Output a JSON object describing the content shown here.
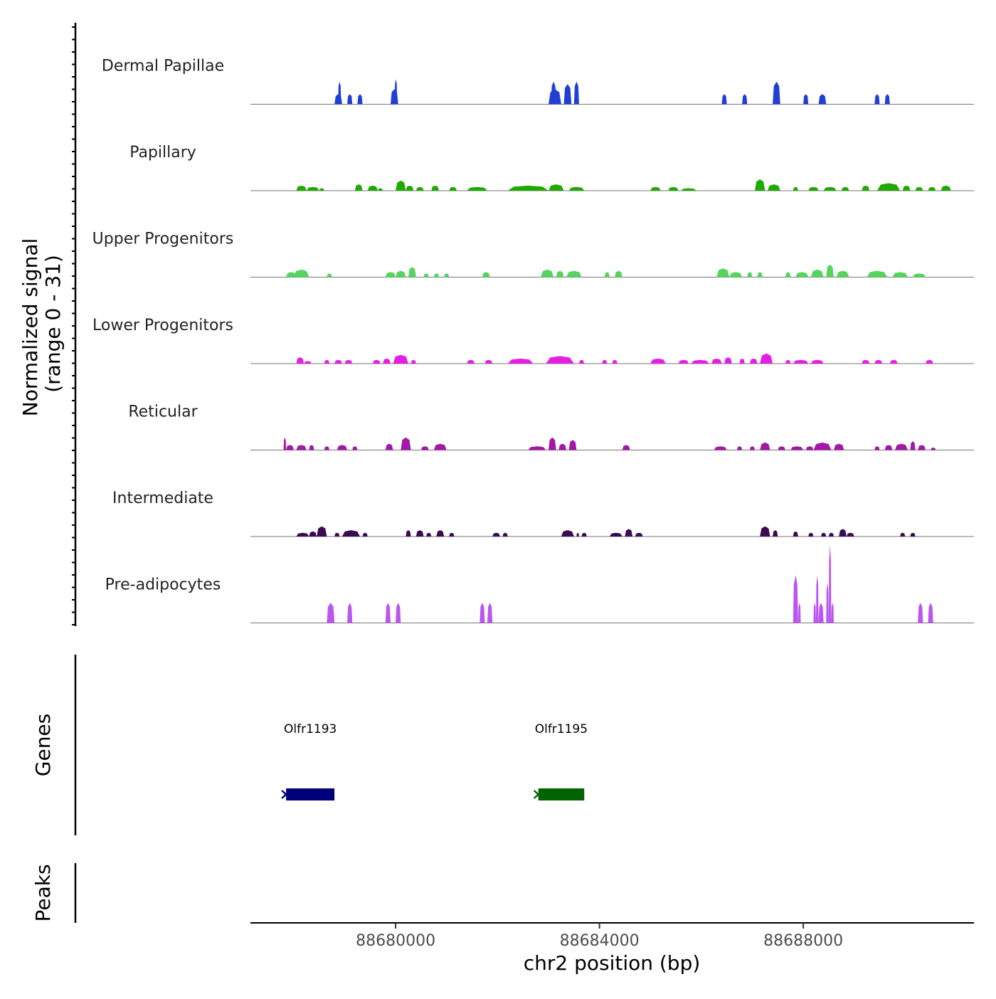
{
  "chart_data": {
    "type": "area",
    "title": "",
    "region": {
      "chrom": "chr2",
      "start": 88677150,
      "end": 88691350
    },
    "xlabel": "chr2 position (bp)",
    "x_ticks": [
      88680000,
      88684000,
      88688000
    ],
    "x_tick_labels": [
      "88680000",
      "88684000",
      "88688000"
    ],
    "ylabel_line1": "Normalized signal",
    "ylabel_line2": "(range 0 - 31)",
    "ylim": [
      0,
      31
    ],
    "genes_label": "Genes",
    "peaks_label": "Peaks",
    "series": [
      {
        "name": "Dermal Papillae",
        "color": "#1f3fd6",
        "segments": [
          [
            88678800,
            88678950,
            4
          ],
          [
            88678870,
            88678930,
            9
          ],
          [
            88679050,
            88679150,
            4
          ],
          [
            88679250,
            88679350,
            4
          ],
          [
            88679900,
            88680050,
            6
          ],
          [
            88679980,
            88680030,
            10
          ],
          [
            88683000,
            88683250,
            6
          ],
          [
            88683050,
            88683150,
            9
          ],
          [
            88683300,
            88683450,
            8
          ],
          [
            88683500,
            88683600,
            9
          ],
          [
            88686400,
            88686500,
            4
          ],
          [
            88686800,
            88686900,
            4
          ],
          [
            88687400,
            88687550,
            9
          ],
          [
            88688000,
            88688100,
            4
          ],
          [
            88688300,
            88688450,
            4
          ],
          [
            88689400,
            88689500,
            4
          ],
          [
            88689600,
            88689700,
            4
          ]
        ]
      },
      {
        "name": "Papillary",
        "color": "#1faa00",
        "segments": [
          [
            88678050,
            88678250,
            2
          ],
          [
            88678250,
            88678500,
            1.5
          ],
          [
            88678500,
            88678600,
            1
          ],
          [
            88679200,
            88679350,
            2.5
          ],
          [
            88679450,
            88679650,
            2
          ],
          [
            88679650,
            88679750,
            1
          ],
          [
            88680000,
            88680200,
            4
          ],
          [
            88680200,
            88680350,
            2
          ],
          [
            88680400,
            88680550,
            1.5
          ],
          [
            88680700,
            88680850,
            2
          ],
          [
            88681050,
            88681200,
            1.5
          ],
          [
            88681400,
            88681800,
            1.5
          ],
          [
            88682200,
            88683000,
            2
          ],
          [
            88683000,
            88683300,
            2.5
          ],
          [
            88683400,
            88683700,
            1.5
          ],
          [
            88685000,
            88685200,
            1.5
          ],
          [
            88685350,
            88685550,
            1.5
          ],
          [
            88685600,
            88685900,
            1
          ],
          [
            88687050,
            88687250,
            4.5
          ],
          [
            88687300,
            88687550,
            2.5
          ],
          [
            88687800,
            88687900,
            1.5
          ],
          [
            88688100,
            88688300,
            1.5
          ],
          [
            88688400,
            88688650,
            1.5
          ],
          [
            88688750,
            88688900,
            1.5
          ],
          [
            88689150,
            88689300,
            2
          ],
          [
            88689450,
            88689900,
            3
          ],
          [
            88689950,
            88690100,
            2
          ],
          [
            88690200,
            88690350,
            1.5
          ],
          [
            88690450,
            88690600,
            1.5
          ],
          [
            88690700,
            88690900,
            2
          ]
        ]
      },
      {
        "name": "Upper Progenitors",
        "color": "#55d45e",
        "segments": [
          [
            88677850,
            88678050,
            2
          ],
          [
            88678000,
            88678300,
            3
          ],
          [
            88678650,
            88678750,
            1.5
          ],
          [
            88679800,
            88680000,
            2
          ],
          [
            88680000,
            88680200,
            2.5
          ],
          [
            88680250,
            88680400,
            4
          ],
          [
            88680550,
            88680650,
            1.5
          ],
          [
            88680750,
            88680850,
            1.5
          ],
          [
            88680950,
            88681050,
            1.5
          ],
          [
            88681700,
            88681850,
            2
          ],
          [
            88682850,
            88683100,
            3
          ],
          [
            88683150,
            88683300,
            2.5
          ],
          [
            88683350,
            88683650,
            2.5
          ],
          [
            88684100,
            88684200,
            2
          ],
          [
            88684300,
            88684450,
            2.5
          ],
          [
            88686300,
            88686550,
            3.5
          ],
          [
            88686550,
            88686800,
            2
          ],
          [
            88686900,
            88687000,
            2
          ],
          [
            88687100,
            88687200,
            2
          ],
          [
            88687650,
            88687750,
            2
          ],
          [
            88687850,
            88688100,
            2
          ],
          [
            88688150,
            88688400,
            3
          ],
          [
            88688450,
            88688600,
            5
          ],
          [
            88688650,
            88688900,
            2.5
          ],
          [
            88689250,
            88689650,
            2.5
          ],
          [
            88689750,
            88690050,
            2
          ],
          [
            88690150,
            88690400,
            1.5
          ]
        ]
      },
      {
        "name": "Lower Progenitors",
        "color": "#e51ee5",
        "segments": [
          [
            88678050,
            88678200,
            2.5
          ],
          [
            88678200,
            88678350,
            1
          ],
          [
            88678600,
            88678700,
            1.5
          ],
          [
            88678800,
            88678950,
            1.5
          ],
          [
            88679000,
            88679150,
            1.5
          ],
          [
            88679550,
            88679700,
            1.5
          ],
          [
            88679750,
            88679900,
            2
          ],
          [
            88679950,
            88680250,
            3.5
          ],
          [
            88680300,
            88680400,
            1.5
          ],
          [
            88681400,
            88681550,
            1.5
          ],
          [
            88681750,
            88681900,
            1.5
          ],
          [
            88682200,
            88682700,
            2
          ],
          [
            88682950,
            88683500,
            3
          ],
          [
            88683600,
            88683700,
            1.5
          ],
          [
            88684050,
            88684150,
            1.5
          ],
          [
            88684250,
            88684350,
            1.5
          ],
          [
            88685000,
            88685300,
            2
          ],
          [
            88685550,
            88685750,
            1.5
          ],
          [
            88685800,
            88686150,
            1.5
          ],
          [
            88686200,
            88686400,
            2
          ],
          [
            88686450,
            88686600,
            2.5
          ],
          [
            88686750,
            88686850,
            2
          ],
          [
            88686950,
            88687100,
            2
          ],
          [
            88687150,
            88687400,
            4
          ],
          [
            88687650,
            88687750,
            1.5
          ],
          [
            88687800,
            88688100,
            1.5
          ],
          [
            88688150,
            88688400,
            1.5
          ],
          [
            88689150,
            88689300,
            1.5
          ],
          [
            88689400,
            88689550,
            1.5
          ],
          [
            88689700,
            88689850,
            1.5
          ],
          [
            88690400,
            88690550,
            1.5
          ]
        ]
      },
      {
        "name": "Reticular",
        "color": "#a318a8",
        "segments": [
          [
            88677800,
            88677850,
            5
          ],
          [
            88677850,
            88678000,
            2
          ],
          [
            88678050,
            88678250,
            2
          ],
          [
            88678300,
            88678400,
            2
          ],
          [
            88678600,
            88678700,
            1.5
          ],
          [
            88678850,
            88679050,
            2
          ],
          [
            88679150,
            88679250,
            1.5
          ],
          [
            88679800,
            88679950,
            2.5
          ],
          [
            88680100,
            88680300,
            5
          ],
          [
            88680500,
            88680650,
            1.5
          ],
          [
            88680750,
            88681000,
            2.5
          ],
          [
            88682600,
            88682950,
            1.5
          ],
          [
            88683000,
            88683150,
            5
          ],
          [
            88683200,
            88683350,
            2.5
          ],
          [
            88683400,
            88683550,
            4
          ],
          [
            88684450,
            88684600,
            2
          ],
          [
            88686250,
            88686500,
            1.5
          ],
          [
            88686700,
            88686800,
            1.5
          ],
          [
            88686950,
            88687050,
            1.5
          ],
          [
            88687150,
            88687350,
            3
          ],
          [
            88687500,
            88687650,
            1.5
          ],
          [
            88687750,
            88688000,
            1.5
          ],
          [
            88688050,
            88688200,
            1.5
          ],
          [
            88688200,
            88688550,
            3
          ],
          [
            88688600,
            88688800,
            2.5
          ],
          [
            88689400,
            88689500,
            1.5
          ],
          [
            88689600,
            88689750,
            2
          ],
          [
            88689800,
            88690050,
            2.5
          ],
          [
            88690100,
            88690200,
            3.5
          ],
          [
            88690250,
            88690400,
            2
          ],
          [
            88690500,
            88690600,
            1
          ]
        ]
      },
      {
        "name": "Intermediate",
        "color": "#3a0a52",
        "segments": [
          [
            88678050,
            88678300,
            1.5
          ],
          [
            88678300,
            88678450,
            2
          ],
          [
            88678450,
            88678650,
            4
          ],
          [
            88678800,
            88678900,
            1.5
          ],
          [
            88678950,
            88679300,
            2.5
          ],
          [
            88679350,
            88679450,
            1.5
          ],
          [
            88680200,
            88680300,
            2.5
          ],
          [
            88680400,
            88680550,
            2.5
          ],
          [
            88680600,
            88680700,
            1.5
          ],
          [
            88680800,
            88680950,
            2.5
          ],
          [
            88681050,
            88681150,
            1.5
          ],
          [
            88681900,
            88682050,
            1.5
          ],
          [
            88682100,
            88682200,
            1.5
          ],
          [
            88683250,
            88683500,
            2.5
          ],
          [
            88683550,
            88683600,
            1.5
          ],
          [
            88683650,
            88683750,
            1.5
          ],
          [
            88684200,
            88684450,
            1.5
          ],
          [
            88684500,
            88684650,
            3
          ],
          [
            88684700,
            88684850,
            1.5
          ],
          [
            88687150,
            88687350,
            4
          ],
          [
            88687400,
            88687500,
            2.5
          ],
          [
            88687800,
            88687900,
            2
          ],
          [
            88688100,
            88688200,
            1.5
          ],
          [
            88688350,
            88688450,
            1.5
          ],
          [
            88688500,
            88688600,
            1.5
          ],
          [
            88688700,
            88688850,
            3
          ],
          [
            88688850,
            88689000,
            1.5
          ],
          [
            88689900,
            88690000,
            1.5
          ],
          [
            88690100,
            88690200,
            1.5
          ]
        ]
      },
      {
        "name": "Pre-adipocytes",
        "color": "#bb55f2",
        "segments": [
          [
            88678650,
            88678800,
            8
          ],
          [
            88679050,
            88679150,
            8
          ],
          [
            88679800,
            88679900,
            8
          ],
          [
            88680000,
            88680100,
            8
          ],
          [
            88681650,
            88681750,
            8
          ],
          [
            88681800,
            88681900,
            8
          ],
          [
            88687800,
            88687900,
            19
          ],
          [
            88687900,
            88687950,
            8
          ],
          [
            88688200,
            88688250,
            8
          ],
          [
            88688250,
            88688300,
            19
          ],
          [
            88688300,
            88688400,
            8
          ],
          [
            88688450,
            88688500,
            16
          ],
          [
            88688500,
            88688550,
            31
          ],
          [
            88688550,
            88688600,
            8
          ],
          [
            88690250,
            88690350,
            8
          ],
          [
            88690450,
            88690550,
            8
          ]
        ]
      }
    ],
    "genes": [
      {
        "name": "Olfr1193",
        "start": 88677850,
        "end": 88678800,
        "color": "#00007a"
      },
      {
        "name": "Olfr1195",
        "start": 88682800,
        "end": 88683700,
        "color": "#006400"
      }
    ],
    "peaks": []
  }
}
